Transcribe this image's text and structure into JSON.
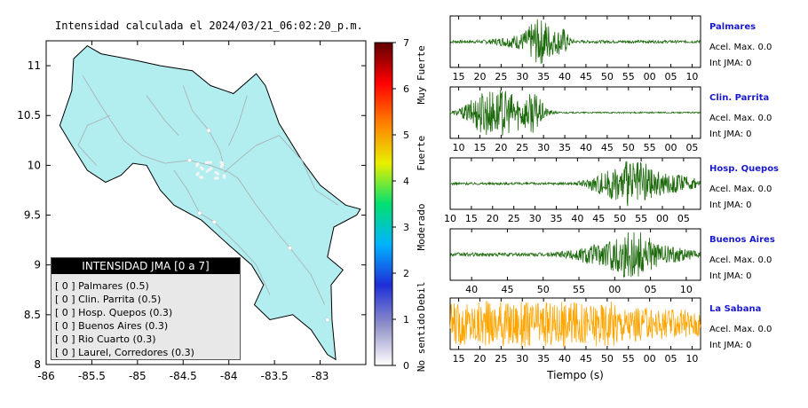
{
  "map": {
    "title": "Intensidad calculada el 2024/03/21_06:02:20_p.m.",
    "x_ticks": [
      "-86",
      "-85.5",
      "-85",
      "-84.5",
      "-84",
      "-83.5",
      "-83"
    ],
    "y_ticks": [
      "8",
      "8.5",
      "9",
      "9.5",
      "10",
      "10.5",
      "11"
    ],
    "xlim": [
      -86,
      -82.5
    ],
    "ylim": [
      8,
      11.25
    ],
    "land_color": "#b2eef0",
    "stations": [
      {
        "name": "Palmares",
        "lon": -84.43,
        "lat": 10.05
      },
      {
        "name": "Clin. Parrita",
        "lon": -84.32,
        "lat": 9.52
      },
      {
        "name": "Hosp. Quepos",
        "lon": -84.16,
        "lat": 9.43
      },
      {
        "name": "Buenos Aires",
        "lon": -83.33,
        "lat": 9.17
      },
      {
        "name": "Rio Cuarto",
        "lon": -84.22,
        "lat": 10.35
      },
      {
        "name": "Laurel, Corredores",
        "lon": -82.92,
        "lat": 8.45
      }
    ]
  },
  "legend": {
    "title": "INTENSIDAD JMA [0 a 7]",
    "items": [
      "[ 0 ] Palmares (0.5)",
      "[ 0 ] Clin. Parrita (0.5)",
      "[ 0 ] Hosp. Quepos (0.3)",
      "[ 0 ] Buenos Aires (0.3)",
      "[ 0 ] Rio Cuarto (0.3)",
      "[ 0 ] Laurel, Corredores (0.3)"
    ]
  },
  "colorbar": {
    "ticks": [
      "0",
      "1",
      "2",
      "3",
      "4",
      "5",
      "6",
      "7"
    ],
    "labels": [
      "No sentido",
      "Debil",
      "Moderado",
      "Fuerte",
      "Muy Fuerte"
    ],
    "colors": [
      "#ffffff",
      "#9090c8",
      "#1e2ed8",
      "#00b4ff",
      "#00e070",
      "#e8f000",
      "#ff8000",
      "#ff0000",
      "#600000"
    ]
  },
  "chart_data": [
    {
      "type": "line",
      "name": "Palmares",
      "info": [
        "Acel. Max. 0.0",
        "Int JMA: 0"
      ],
      "color": "#1d6a0c",
      "ticks": [
        "15",
        "20",
        "25",
        "30",
        "35",
        "40",
        "45",
        "50",
        "55",
        "00",
        "05",
        "10"
      ],
      "first_tick_value": 15,
      "xlim": [
        13,
        12
      ],
      "bursts": [
        {
          "center": 34.5,
          "width": 3,
          "amp": 0.95
        },
        {
          "center": 39.5,
          "width": 1.5,
          "amp": 0.5
        },
        {
          "center": 30,
          "width": 6,
          "amp": 0.25
        }
      ],
      "base_amp": 0.06
    },
    {
      "type": "line",
      "name": "Clin. Parrita",
      "info": [
        "Acel. Max. 0.0",
        "Int JMA: 0"
      ],
      "color": "#1d6a0c",
      "ticks": [
        "10",
        "15",
        "20",
        "25",
        "30",
        "35",
        "40",
        "45",
        "50",
        "55",
        "00",
        "05"
      ],
      "first_tick_value": 10,
      "xlim": [
        8,
        7
      ],
      "bursts": [
        {
          "center": 17,
          "width": 5,
          "amp": 1.0
        },
        {
          "center": 24,
          "width": 5,
          "amp": 0.6
        },
        {
          "center": 28,
          "width": 2,
          "amp": 0.5
        }
      ],
      "base_amp": 0.03
    },
    {
      "type": "line",
      "name": "Hosp. Quepos",
      "info": [
        "Acel. Max. 0.0",
        "Int JMA: 0"
      ],
      "color": "#1d6a0c",
      "ticks": [
        "10",
        "15",
        "20",
        "25",
        "30",
        "35",
        "40",
        "45",
        "50",
        "55",
        "00",
        "05"
      ],
      "first_tick_value": 10,
      "xlim": [
        10,
        9
      ],
      "bursts": [
        {
          "center": 54,
          "width": 3,
          "amp": 1.0
        },
        {
          "center": 48,
          "width": 5,
          "amp": 0.55
        },
        {
          "center": 60,
          "width": 8,
          "amp": 0.45
        }
      ],
      "base_amp": 0.05
    },
    {
      "type": "line",
      "name": "Buenos Aires",
      "info": [
        "Acel. Max. 0.0",
        "Int JMA: 0"
      ],
      "color": "#1d6a0c",
      "ticks": [
        "40",
        "45",
        "50",
        "55",
        "00",
        "05",
        "10"
      ],
      "first_tick_value": 40,
      "xlim": [
        37,
        12
      ],
      "bursts": [
        {
          "center": 62.5,
          "width": 2.5,
          "amp": 1.0
        },
        {
          "center": 58,
          "width": 4,
          "amp": 0.4
        },
        {
          "center": 67,
          "width": 4,
          "amp": 0.3
        }
      ],
      "base_amp": 0.08
    },
    {
      "type": "line",
      "name": "La Sabana",
      "info": [
        "Acel. Max. 0.0",
        "Int JMA: 0"
      ],
      "color": "#ffa500",
      "ticks": [
        "15",
        "20",
        "25",
        "30",
        "35",
        "40",
        "45",
        "50",
        "55",
        "00",
        "05",
        "10"
      ],
      "first_tick_value": 15,
      "xlim": [
        13,
        12
      ],
      "bursts": [
        {
          "center": 50,
          "width": 2,
          "amp": 0.85
        },
        {
          "center": 30,
          "width": 30,
          "amp": 0.55
        }
      ],
      "base_amp": 0.5
    }
  ],
  "xlabel": "Tiempo (s)"
}
